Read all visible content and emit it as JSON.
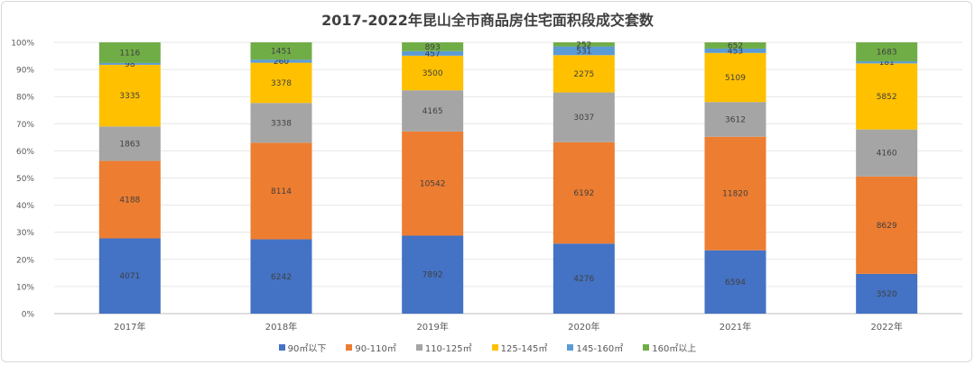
{
  "chart_data": {
    "type": "bar",
    "stacked": "percent",
    "title": "2017-2022年昆山全市商品房住宅面积段成交套数",
    "categories": [
      "2017年",
      "2018年",
      "2019年",
      "2020年",
      "2021年",
      "2022年"
    ],
    "series": [
      {
        "name": "90㎡以下",
        "color": "#4472c4",
        "values": [
          4071,
          6242,
          7892,
          4276,
          6594,
          3520
        ]
      },
      {
        "name": "90-110㎡",
        "color": "#ed7d31",
        "values": [
          4188,
          8114,
          10542,
          6192,
          11820,
          8629
        ]
      },
      {
        "name": "110-125㎡",
        "color": "#a5a5a5",
        "values": [
          1863,
          3338,
          4165,
          3037,
          3612,
          4160
        ]
      },
      {
        "name": "125-145㎡",
        "color": "#ffc000",
        "values": [
          3335,
          3378,
          3500,
          2275,
          5109,
          5852
        ]
      },
      {
        "name": "145-160㎡",
        "color": "#5b9bd5",
        "values": [
          98,
          260,
          457,
          531,
          453,
          181
        ]
      },
      {
        "name": "160㎡以上",
        "color": "#70ad47",
        "values": [
          1116,
          1451,
          893,
          252,
          652,
          1683
        ]
      }
    ],
    "ylim": [
      0,
      100
    ],
    "yticks": [
      "0%",
      "10%",
      "20%",
      "30%",
      "40%",
      "50%",
      "60%",
      "70%",
      "80%",
      "90%",
      "100%"
    ],
    "grid": true,
    "legend": "bottom"
  }
}
